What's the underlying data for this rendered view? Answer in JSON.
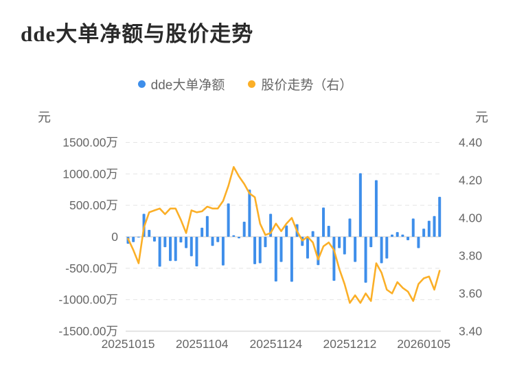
{
  "title": "dde大单净额与股价走势",
  "legend": {
    "items": [
      {
        "label": "dde大单净额",
        "color": "#3E8EEA"
      },
      {
        "label": "股价走势（右）",
        "color": "#FBAF27"
      }
    ]
  },
  "axes": {
    "left_unit": "元",
    "right_unit": "元"
  },
  "chart_data": {
    "type": "bar",
    "title": "dde大单净额与股价走势",
    "grid": true,
    "legend_position": "top-center",
    "num_points": 60,
    "left_axis": {
      "unit": "元",
      "tick_labels": [
        "1500.00万",
        "1000.00万",
        "500.00万",
        "0",
        "-500.00万",
        "-1000.00万",
        "-1500.00万"
      ],
      "tick_values_wan": [
        1500,
        1000,
        500,
        0,
        -500,
        -1000,
        -1500
      ],
      "max_wan": 1500,
      "min_wan": -1500
    },
    "right_axis": {
      "unit": "元",
      "tick_labels": [
        "4.40",
        "4.20",
        "4.00",
        "3.80",
        "3.60",
        "3.40"
      ],
      "tick_values": [
        4.4,
        4.2,
        4.0,
        3.8,
        3.6,
        3.4
      ],
      "max": 4.4,
      "min": 3.4
    },
    "x_axis": {
      "tick_labels": [
        "20251015",
        "20251104",
        "20251124",
        "20251212",
        "20260105"
      ],
      "tick_indices": [
        0,
        14,
        28,
        42,
        56
      ]
    },
    "series": [
      {
        "name": "dde大单净额",
        "type": "bar",
        "axis": "left",
        "unit": "万元",
        "color": "#3E8EEA",
        "values_wan": [
          -110,
          -85,
          -10,
          365,
          110,
          -75,
          -475,
          -165,
          -385,
          -385,
          -90,
          -180,
          -310,
          -470,
          145,
          330,
          -145,
          -85,
          -455,
          530,
          25,
          -25,
          240,
          750,
          -435,
          -420,
          -165,
          365,
          -710,
          -400,
          180,
          -715,
          200,
          -145,
          -345,
          90,
          -450,
          465,
          175,
          -700,
          -180,
          -280,
          290,
          -400,
          1010,
          -730,
          -165,
          900,
          -420,
          -345,
          35,
          75,
          35,
          -55,
          290,
          -180,
          130,
          255,
          330,
          635
        ]
      },
      {
        "name": "股价走势（右）",
        "type": "line",
        "axis": "right",
        "unit": "元",
        "color": "#FBAF27",
        "values": [
          3.89,
          3.83,
          3.76,
          3.95,
          4.03,
          4.04,
          4.05,
          4.02,
          4.05,
          4.05,
          3.99,
          3.92,
          4.04,
          4.03,
          4.035,
          4.06,
          4.05,
          4.05,
          4.09,
          4.17,
          4.27,
          4.22,
          4.18,
          4.13,
          4.11,
          3.97,
          3.91,
          3.92,
          3.97,
          3.93,
          3.97,
          4.0,
          3.93,
          3.88,
          3.9,
          3.87,
          3.78,
          3.85,
          3.87,
          3.83,
          3.73,
          3.65,
          3.55,
          3.59,
          3.55,
          3.6,
          3.56,
          3.76,
          3.71,
          3.62,
          3.6,
          3.66,
          3.63,
          3.61,
          3.56,
          3.65,
          3.68,
          3.69,
          3.62,
          3.72
        ]
      }
    ]
  }
}
